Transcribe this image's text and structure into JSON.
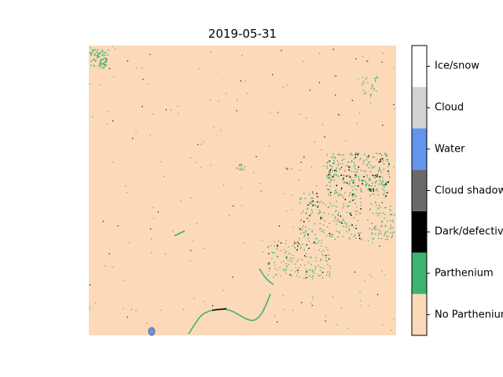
{
  "chart_data": {
    "type": "heatmap",
    "title": "2019-05-31",
    "xlabel": "",
    "ylabel": "",
    "grid": false,
    "classes": [
      {
        "label": "No Parthenium",
        "color": "#fcd9b8"
      },
      {
        "label": "Parthenium",
        "color": "#3cb371"
      },
      {
        "label": "Dark/defective",
        "color": "#000000"
      },
      {
        "label": "Cloud shadow",
        "color": "#696969"
      },
      {
        "label": "Water",
        "color": "#6495ed"
      },
      {
        "label": "Cloud",
        "color": "#d3d3d3"
      },
      {
        "label": "Ice/snow",
        "color": "#ffffff"
      }
    ],
    "background_class": "No Parthenium",
    "colorbar_position": "right"
  }
}
